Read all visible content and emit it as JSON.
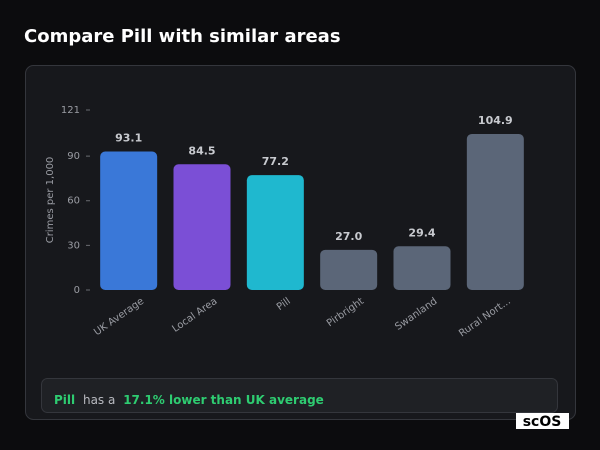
{
  "title": "Compare Pill with similar areas",
  "chart_data": {
    "type": "bar",
    "y_label": "Crimes per 1,000",
    "categories": [
      "UK Average",
      "Local Area",
      "Pill",
      "Pirbright",
      "Swanland",
      "Rural Nort..."
    ],
    "values": [
      93.1,
      84.5,
      77.2,
      27.0,
      29.4,
      104.9
    ],
    "value_labels": [
      "93.1",
      "84.5",
      "77.2",
      "27.0",
      "29.4",
      "104.9"
    ],
    "colors": [
      "#3a78d8",
      "#7b4fd6",
      "#1fb8cf",
      "#5b6678",
      "#5b6678",
      "#5b6678"
    ],
    "ylim": [
      0,
      121
    ],
    "yticks": [
      0,
      30,
      60,
      90,
      121
    ]
  },
  "summary": {
    "area": "Pill",
    "text": "has a",
    "highlight": "17.1% lower than UK average"
  },
  "logo": "scOS"
}
